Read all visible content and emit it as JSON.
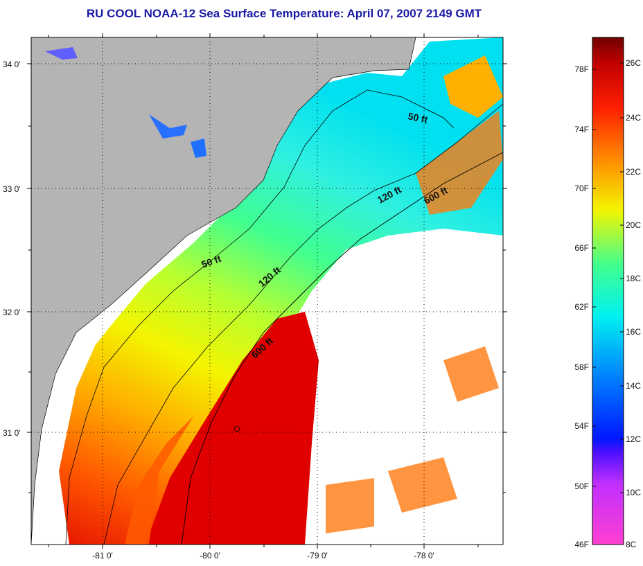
{
  "title": "RU COOL  NOAA-12  Sea Surface Temperature:  April 07, 2007 2149 GMT",
  "map": {
    "lon_ticks": [
      "-81 0'",
      "-80 0'",
      "-79 0'",
      "-78 0'"
    ],
    "lat_ticks": [
      "34 0'",
      "33 0'",
      "32 0'",
      "31 0'"
    ],
    "contours": [
      "50 ft",
      "120 ft",
      "600 ft",
      "50 ft",
      "120 ft",
      "600 ft"
    ]
  },
  "colorbar": {
    "f_labels": [
      "78F",
      "74F",
      "70F",
      "66F",
      "62F",
      "58F",
      "54F",
      "50F",
      "46F"
    ],
    "c_labels": [
      "26C",
      "24C",
      "22C",
      "20C",
      "18C",
      "16C",
      "14C",
      "12C",
      "10C",
      "8C"
    ],
    "colors": {
      "magenta": "#ff3fd0",
      "purple": "#8020ff",
      "blue": "#0018ff",
      "cyan": "#00f0f0",
      "green": "#40ff90",
      "yellow": "#f4f400",
      "orange": "#ff8a00",
      "red": "#e00000",
      "darkred": "#700000"
    }
  },
  "colors": {
    "land": "#b4b4b4",
    "ocean_nodata": "#ffffff",
    "title": "#1a1aa6"
  }
}
